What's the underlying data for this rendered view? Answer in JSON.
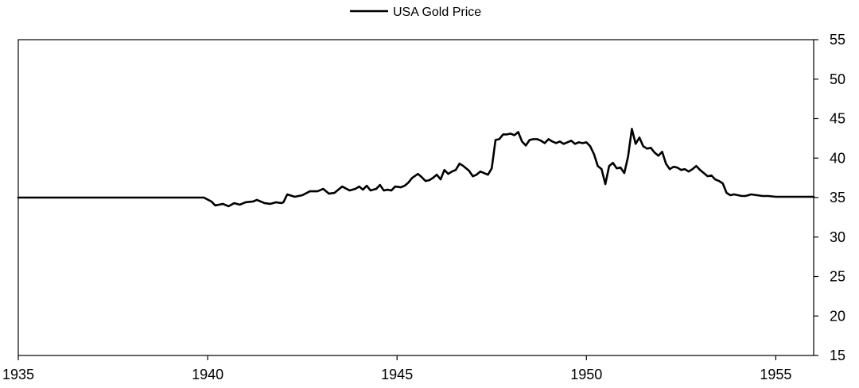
{
  "chart_data": {
    "type": "line",
    "title": "",
    "xlabel": "",
    "ylabel": "",
    "xlim": [
      1935,
      1956
    ],
    "ylim": [
      15,
      55
    ],
    "y_axis_side": "right",
    "grid": false,
    "legend": {
      "placement": "top-center",
      "entries": [
        "USA Gold Price"
      ]
    },
    "x_ticks": [
      1935,
      1940,
      1945,
      1950,
      1955
    ],
    "y_ticks": [
      15,
      20,
      25,
      30,
      35,
      40,
      45,
      50,
      55
    ],
    "series": [
      {
        "name": "USA Gold Price",
        "color": "#000000",
        "x": [
          1935.0,
          1939.9,
          1940.1,
          1940.2,
          1940.4,
          1940.55,
          1940.7,
          1940.85,
          1941.0,
          1941.2,
          1941.3,
          1941.5,
          1941.65,
          1941.8,
          1941.95,
          1942.0,
          1942.1,
          1942.3,
          1942.5,
          1942.7,
          1942.9,
          1943.05,
          1943.2,
          1943.35,
          1943.55,
          1943.75,
          1943.9,
          1944.0,
          1944.1,
          1944.2,
          1944.3,
          1944.45,
          1944.55,
          1944.65,
          1944.75,
          1944.85,
          1944.95,
          1945.1,
          1945.2,
          1945.3,
          1945.4,
          1945.55,
          1945.65,
          1945.75,
          1945.85,
          1945.95,
          1946.05,
          1946.15,
          1946.25,
          1946.35,
          1946.45,
          1946.55,
          1946.65,
          1946.75,
          1946.9,
          1947.0,
          1947.1,
          1947.2,
          1947.3,
          1947.4,
          1947.5,
          1947.6,
          1947.7,
          1947.8,
          1947.9,
          1948.0,
          1948.1,
          1948.2,
          1948.3,
          1948.4,
          1948.5,
          1948.6,
          1948.7,
          1948.8,
          1948.9,
          1949.0,
          1949.1,
          1949.2,
          1949.3,
          1949.4,
          1949.5,
          1949.6,
          1949.7,
          1949.8,
          1949.9,
          1950.0,
          1950.1,
          1950.2,
          1950.3,
          1950.4,
          1950.5,
          1950.6,
          1950.7,
          1950.8,
          1950.9,
          1951.0,
          1951.1,
          1951.2,
          1951.3,
          1951.4,
          1951.5,
          1951.6,
          1951.7,
          1951.8,
          1951.9,
          1952.0,
          1952.1,
          1952.2,
          1952.3,
          1952.4,
          1952.5,
          1952.6,
          1952.7,
          1952.8,
          1952.9,
          1953.0,
          1953.1,
          1953.2,
          1953.3,
          1953.4,
          1953.5,
          1953.6,
          1953.7,
          1953.8,
          1953.9,
          1954.0,
          1954.1,
          1954.2,
          1954.35,
          1954.5,
          1954.65,
          1954.8,
          1955.0,
          1955.5,
          1956.0
        ],
        "y": [
          35.0,
          35.0,
          34.5,
          34.0,
          34.2,
          33.9,
          34.3,
          34.1,
          34.4,
          34.5,
          34.7,
          34.3,
          34.2,
          34.4,
          34.3,
          34.4,
          35.4,
          35.1,
          35.3,
          35.8,
          35.8,
          36.1,
          35.5,
          35.6,
          36.4,
          35.9,
          36.1,
          36.4,
          36.0,
          36.5,
          35.9,
          36.1,
          36.6,
          35.9,
          36.0,
          35.9,
          36.4,
          36.3,
          36.5,
          36.9,
          37.5,
          38.0,
          37.6,
          37.1,
          37.2,
          37.5,
          37.9,
          37.3,
          38.5,
          38.0,
          38.3,
          38.5,
          39.3,
          39.0,
          38.4,
          37.7,
          37.9,
          38.3,
          38.1,
          37.9,
          38.7,
          42.3,
          42.4,
          43.0,
          43.0,
          43.1,
          42.9,
          43.3,
          42.1,
          41.6,
          42.3,
          42.4,
          42.4,
          42.2,
          41.9,
          42.4,
          42.1,
          41.9,
          42.1,
          41.8,
          42.0,
          42.2,
          41.8,
          42.0,
          41.9,
          42.0,
          41.5,
          40.5,
          39.0,
          38.6,
          36.7,
          39.0,
          39.4,
          38.7,
          38.8,
          38.1,
          40.2,
          43.7,
          41.8,
          42.6,
          41.5,
          41.2,
          41.3,
          40.7,
          40.3,
          40.8,
          39.3,
          38.6,
          38.9,
          38.8,
          38.5,
          38.6,
          38.3,
          38.6,
          39.0,
          38.5,
          38.1,
          37.7,
          37.8,
          37.3,
          37.1,
          36.8,
          35.6,
          35.3,
          35.4,
          35.3,
          35.2,
          35.2,
          35.4,
          35.3,
          35.2,
          35.2,
          35.1,
          35.1,
          35.1
        ]
      }
    ]
  }
}
